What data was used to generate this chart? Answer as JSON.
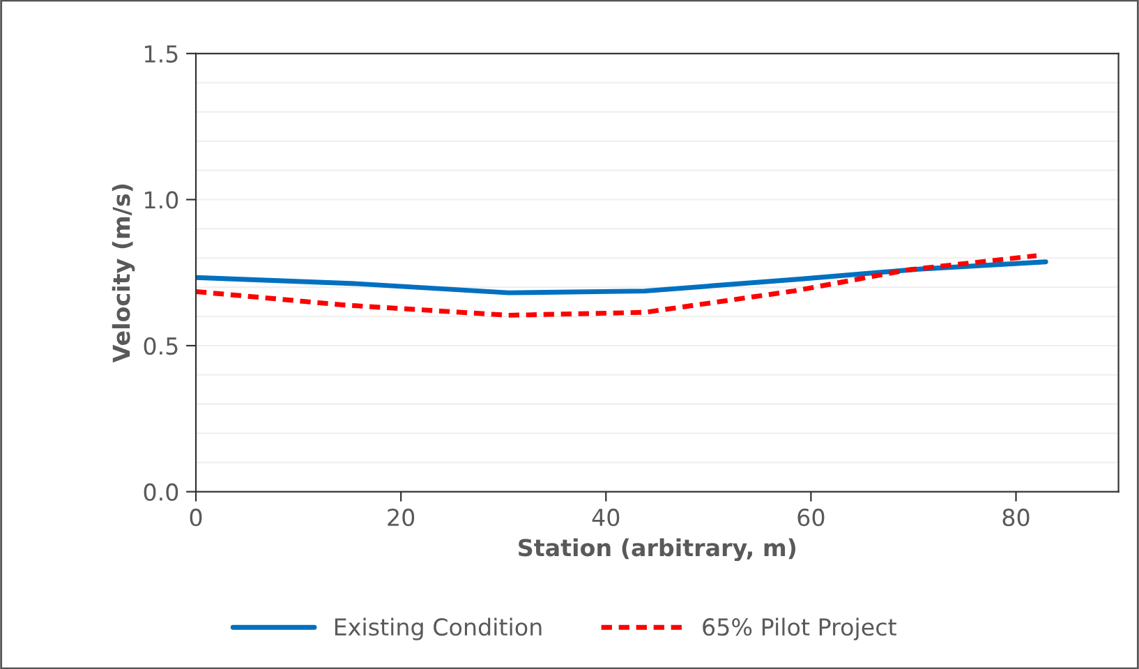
{
  "chart_data": {
    "type": "line",
    "xlabel": "Station (arbitrary, m)",
    "ylabel": "Velocity (m/s)",
    "xlim": [
      0,
      90
    ],
    "xticks": [
      0,
      20,
      40,
      60,
      80
    ],
    "ylim": [
      0,
      1.5
    ],
    "yticks": [
      {
        "value": 0,
        "label": "0.0"
      },
      {
        "value": 0.5,
        "label": "0.5"
      },
      {
        "value": 1.0,
        "label": "1.0"
      },
      {
        "value": 1.5,
        "label": "1.5"
      }
    ],
    "grid": "y",
    "legend": "bottom",
    "series": [
      {
        "name": "Existing Condition",
        "color": "#0070c0",
        "line_style": "solid",
        "x": [
          0,
          15.7,
          30.5,
          43.8,
          58.9,
          70.5,
          82.9
        ],
        "values": [
          0.733,
          0.712,
          0.681,
          0.687,
          0.728,
          0.762,
          0.787
        ]
      },
      {
        "name": "65% Pilot Project",
        "color": "#ff0000",
        "line_style": "dashed",
        "x": [
          0,
          14.5,
          30.5,
          43.8,
          58.3,
          69.6,
          82.0
        ],
        "values": [
          0.685,
          0.639,
          0.604,
          0.614,
          0.687,
          0.76,
          0.808
        ]
      }
    ]
  }
}
